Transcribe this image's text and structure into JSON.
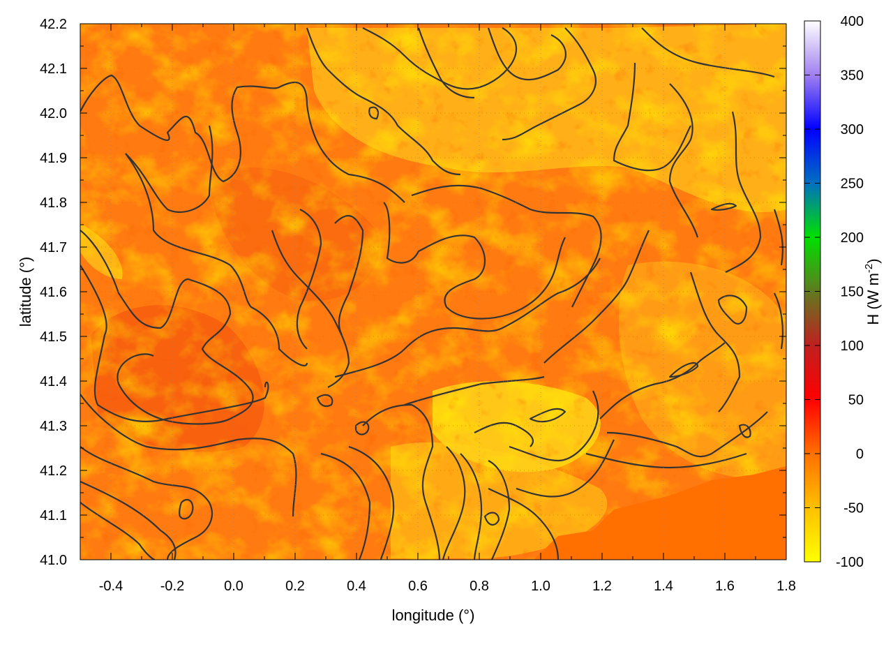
{
  "chart_data": {
    "type": "heatmap",
    "xlabel": "longitude (°)",
    "ylabel": "latitude (°)",
    "colorbar_label": "H (W m",
    "colorbar_label_sup": "-2",
    "colorbar_label_close": ")",
    "xlim": [
      -0.5,
      1.8
    ],
    "ylim": [
      41.0,
      42.2
    ],
    "x_ticks": [
      -0.4,
      -0.2,
      0.0,
      0.2,
      0.4,
      0.6,
      0.8,
      1.0,
      1.2,
      1.4,
      1.6,
      1.8
    ],
    "x_tick_labels": [
      "-0.4",
      "-0.2",
      "0.0",
      "0.2",
      "0.4",
      "0.6",
      "0.8",
      "1.0",
      "1.2",
      "1.4",
      "1.6",
      "1.8"
    ],
    "y_ticks": [
      41.0,
      41.1,
      41.2,
      41.3,
      41.4,
      41.5,
      41.6,
      41.7,
      41.8,
      41.9,
      42.0,
      42.1,
      42.2
    ],
    "y_tick_labels": [
      "41.0",
      "41.1",
      "41.2",
      "41.3",
      "41.4",
      "41.5",
      "41.6",
      "41.7",
      "41.8",
      "41.9",
      "42.0",
      "42.1",
      "42.2"
    ],
    "colorbar_range": [
      -100,
      400
    ],
    "colorbar_ticks": [
      -100,
      -50,
      0,
      50,
      100,
      150,
      200,
      250,
      300,
      350,
      400
    ],
    "colorbar_tick_labels": [
      "-100",
      "-50",
      "0",
      "50",
      "100",
      "150",
      "200",
      "250",
      "300",
      "350",
      "400"
    ],
    "colorbar_colors": [
      {
        "value": -100,
        "color": "#ffff00"
      },
      {
        "value": -50,
        "color": "#ffc000"
      },
      {
        "value": 0,
        "color": "#ff7000"
      },
      {
        "value": 50,
        "color": "#ff0000"
      },
      {
        "value": 100,
        "color": "#c02020"
      },
      {
        "value": 150,
        "color": "#607a20"
      },
      {
        "value": 200,
        "color": "#00e000"
      },
      {
        "value": 250,
        "color": "#0070c0"
      },
      {
        "value": 300,
        "color": "#0000ff"
      },
      {
        "value": 350,
        "color": "#a080f0"
      },
      {
        "value": 400,
        "color": "#ffffff"
      }
    ],
    "field_dominant_value_range": [
      -60,
      20
    ],
    "grid": true,
    "contours": true,
    "contour_color": "#333333"
  }
}
